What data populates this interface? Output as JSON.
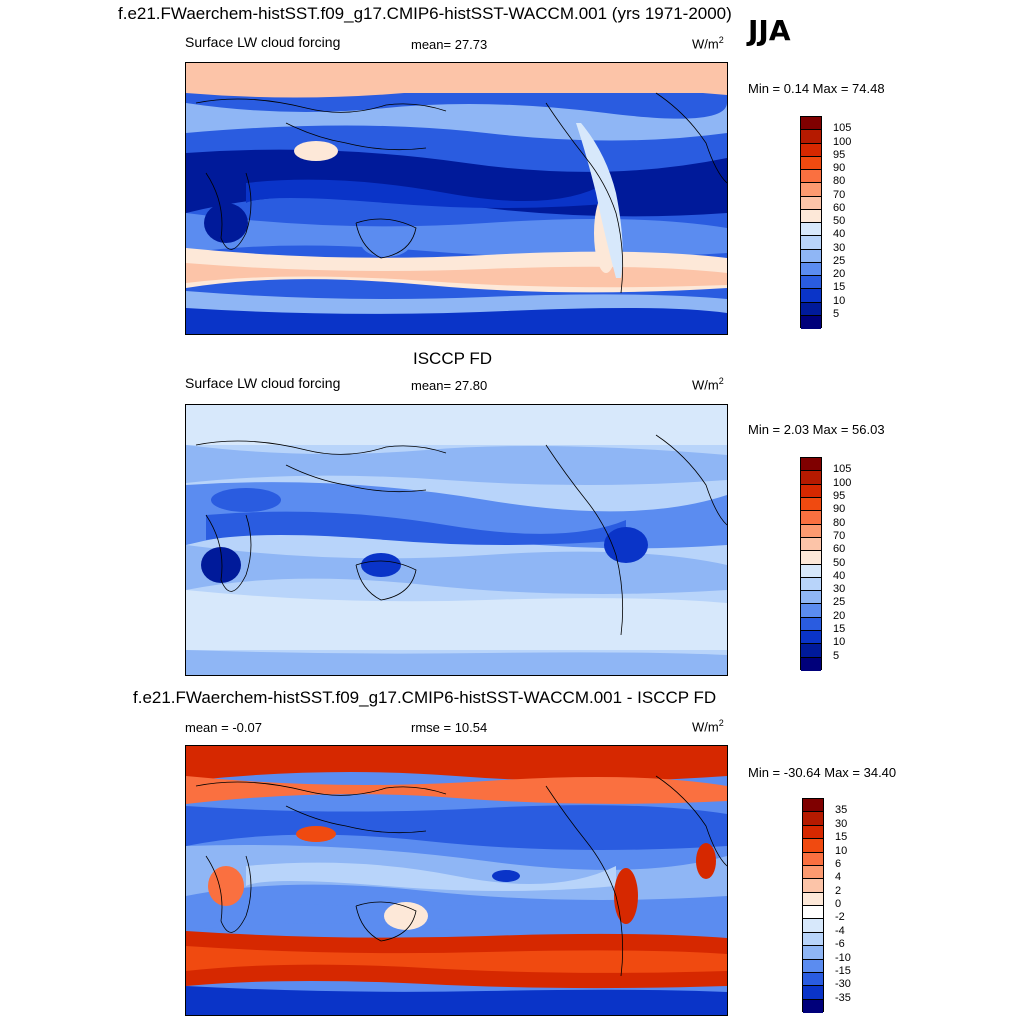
{
  "header": {
    "title": "f.e21.FWaerchem-histSST.f09_g17.CMIP6-histSST-WACCM.001 (yrs 1971-2000)",
    "season": "JJA"
  },
  "panels": [
    {
      "id": "model",
      "variable": "Surface LW cloud forcing",
      "mean_label": "mean=  27.73",
      "units": "W/m",
      "units_exp": "2",
      "minmax": "Min =   0.14 Max =  74.48",
      "levels": [
        "105",
        "100",
        "95",
        "90",
        "80",
        "70",
        "60",
        "50",
        "40",
        "30",
        "25",
        "20",
        "15",
        "10",
        "5"
      ],
      "colors": [
        "#7f0000",
        "#b51a00",
        "#d62800",
        "#f04a10",
        "#fa7040",
        "#fc9a70",
        "#fcc4a8",
        "#fde8d8",
        "#d7e8fb",
        "#b8d4fa",
        "#8fb6f5",
        "#5b8cf0",
        "#2a5ce0",
        "#0a34c8",
        "#001a9a",
        "#00007a"
      ]
    },
    {
      "id": "obs",
      "heading": "ISCCP FD",
      "variable": "Surface LW cloud forcing",
      "mean_label": "mean=  27.80",
      "units": "W/m",
      "units_exp": "2",
      "minmax": "Min =   2.03 Max =  56.03",
      "levels": [
        "105",
        "100",
        "95",
        "90",
        "80",
        "70",
        "60",
        "50",
        "40",
        "30",
        "25",
        "20",
        "15",
        "10",
        "5"
      ],
      "colors": [
        "#7f0000",
        "#b51a00",
        "#d62800",
        "#f04a10",
        "#fa7040",
        "#fc9a70",
        "#fcc4a8",
        "#fde8d8",
        "#d7e8fb",
        "#b8d4fa",
        "#8fb6f5",
        "#5b8cf0",
        "#2a5ce0",
        "#0a34c8",
        "#001a9a",
        "#00007a"
      ]
    },
    {
      "id": "diff",
      "heading": "f.e21.FWaerchem-histSST.f09_g17.CMIP6-histSST-WACCM.001 - ISCCP FD",
      "mean_label": "mean =  -0.07",
      "rmse_label": "rmse =  10.54",
      "units": "W/m",
      "units_exp": "2",
      "minmax": "Min = -30.64 Max =  34.40",
      "levels": [
        "35",
        "30",
        "15",
        "10",
        "6",
        "4",
        "2",
        "0",
        "-2",
        "-4",
        "-6",
        "-10",
        "-15",
        "-30",
        "-35"
      ],
      "colors": [
        "#7f0000",
        "#b51a00",
        "#d62800",
        "#f04a10",
        "#fa7040",
        "#fc9a70",
        "#fcc4a8",
        "#fde8d8",
        "#ffffff",
        "#d7e8fb",
        "#b8d4fa",
        "#8fb6f5",
        "#5b8cf0",
        "#2a5ce0",
        "#0a34c8",
        "#00007a"
      ]
    }
  ]
}
